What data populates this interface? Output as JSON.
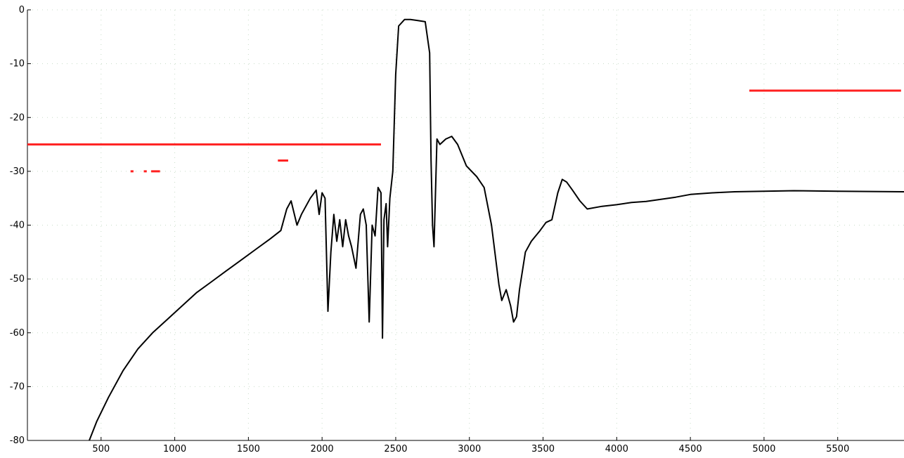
{
  "chart_data": {
    "type": "line",
    "title": "",
    "xlabel": "",
    "ylabel": "",
    "xlim": [
      0,
      5950
    ],
    "ylim": [
      -80,
      0
    ],
    "grid": true,
    "x_ticks": [
      500,
      1000,
      1500,
      2000,
      2500,
      3000,
      3500,
      4000,
      4500,
      5000,
      5500
    ],
    "y_ticks": [
      0,
      -10,
      -20,
      -30,
      -40,
      -50,
      -60,
      -70,
      -80
    ],
    "series": [
      {
        "color": "#000000",
        "points": [
          [
            420,
            -80
          ],
          [
            470,
            -76.5
          ],
          [
            550,
            -72
          ],
          [
            650,
            -67
          ],
          [
            750,
            -63
          ],
          [
            850,
            -60
          ],
          [
            950,
            -57.5
          ],
          [
            1050,
            -55
          ],
          [
            1150,
            -52.5
          ],
          [
            1250,
            -50.5
          ],
          [
            1350,
            -48.5
          ],
          [
            1450,
            -46.5
          ],
          [
            1550,
            -44.5
          ],
          [
            1650,
            -42.5
          ],
          [
            1720,
            -41
          ],
          [
            1760,
            -37
          ],
          [
            1790,
            -35.5
          ],
          [
            1830,
            -40
          ],
          [
            1860,
            -38
          ],
          [
            1920,
            -35
          ],
          [
            1960,
            -33.5
          ],
          [
            1980,
            -38
          ],
          [
            2000,
            -34
          ],
          [
            2020,
            -35
          ],
          [
            2040,
            -56
          ],
          [
            2060,
            -45
          ],
          [
            2080,
            -38
          ],
          [
            2100,
            -43
          ],
          [
            2120,
            -39
          ],
          [
            2140,
            -44
          ],
          [
            2160,
            -39
          ],
          [
            2180,
            -42
          ],
          [
            2200,
            -44
          ],
          [
            2230,
            -48
          ],
          [
            2260,
            -38
          ],
          [
            2280,
            -37
          ],
          [
            2300,
            -40
          ],
          [
            2320,
            -58
          ],
          [
            2340,
            -40
          ],
          [
            2360,
            -42
          ],
          [
            2380,
            -33
          ],
          [
            2400,
            -34
          ],
          [
            2410,
            -61
          ],
          [
            2420,
            -39
          ],
          [
            2435,
            -36
          ],
          [
            2445,
            -44
          ],
          [
            2460,
            -35
          ],
          [
            2480,
            -30
          ],
          [
            2500,
            -12
          ],
          [
            2520,
            -3
          ],
          [
            2560,
            -1.8
          ],
          [
            2600,
            -1.8
          ],
          [
            2650,
            -2
          ],
          [
            2700,
            -2.2
          ],
          [
            2730,
            -8
          ],
          [
            2740,
            -28
          ],
          [
            2750,
            -40
          ],
          [
            2760,
            -44
          ],
          [
            2780,
            -24
          ],
          [
            2800,
            -25
          ],
          [
            2840,
            -24
          ],
          [
            2880,
            -23.5
          ],
          [
            2920,
            -25
          ],
          [
            2980,
            -29
          ],
          [
            3050,
            -31
          ],
          [
            3100,
            -33
          ],
          [
            3150,
            -40
          ],
          [
            3200,
            -51
          ],
          [
            3220,
            -54
          ],
          [
            3250,
            -52
          ],
          [
            3280,
            -55
          ],
          [
            3300,
            -58
          ],
          [
            3320,
            -57
          ],
          [
            3340,
            -52
          ],
          [
            3380,
            -45
          ],
          [
            3420,
            -43
          ],
          [
            3450,
            -42
          ],
          [
            3480,
            -41
          ],
          [
            3520,
            -39.5
          ],
          [
            3560,
            -39
          ],
          [
            3600,
            -34
          ],
          [
            3630,
            -31.5
          ],
          [
            3660,
            -32
          ],
          [
            3700,
            -33.5
          ],
          [
            3750,
            -35.5
          ],
          [
            3800,
            -37
          ],
          [
            3900,
            -36.5
          ],
          [
            4000,
            -36.2
          ],
          [
            4100,
            -35.8
          ],
          [
            4200,
            -35.6
          ],
          [
            4300,
            -35.2
          ],
          [
            4400,
            -34.8
          ],
          [
            4500,
            -34.3
          ],
          [
            4650,
            -34
          ],
          [
            4800,
            -33.8
          ],
          [
            5000,
            -33.7
          ],
          [
            5200,
            -33.6
          ],
          [
            5500,
            -33.7
          ],
          [
            5950,
            -33.8
          ]
        ]
      }
    ],
    "limit_lines": [
      {
        "color": "#ff2020",
        "x": [
          0,
          2400
        ],
        "y": -25
      },
      {
        "color": "#ff2020",
        "x": [
          700,
          720
        ],
        "y": -30
      },
      {
        "color": "#ff2020",
        "x": [
          790,
          810
        ],
        "y": -30
      },
      {
        "color": "#ff2020",
        "x": [
          840,
          900
        ],
        "y": -30
      },
      {
        "color": "#ff2020",
        "x": [
          1700,
          1770
        ],
        "y": -28
      },
      {
        "color": "#ff2020",
        "x": [
          4900,
          5930
        ],
        "y": -15
      }
    ]
  }
}
